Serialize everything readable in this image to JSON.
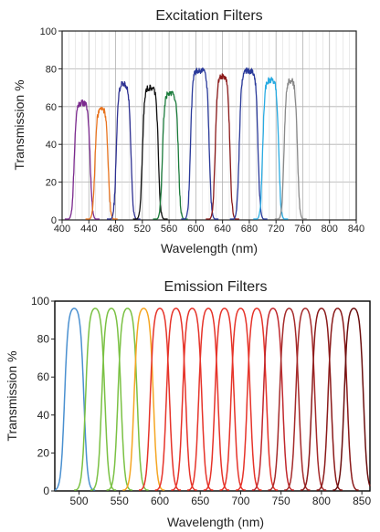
{
  "chart_data": [
    {
      "type": "line",
      "title": "Excitation Filters",
      "xlabel": "Wavelength (nm)",
      "ylabel": "Transmission %",
      "xlim": [
        400,
        840
      ],
      "ylim": [
        0,
        100
      ],
      "xticks": [
        400,
        440,
        480,
        520,
        560,
        600,
        640,
        680,
        720,
        760,
        800,
        840
      ],
      "yticks": [
        0,
        20,
        40,
        60,
        80,
        100
      ],
      "grid": true,
      "legend": "none",
      "series": [
        {
          "color": "#7b2a8e",
          "center": 430,
          "fwhm": 24,
          "peak": 62
        },
        {
          "color": "#e8731e",
          "center": 459,
          "fwhm": 20,
          "peak": 59
        },
        {
          "color": "#2e3192",
          "center": 492,
          "fwhm": 22,
          "peak": 72
        },
        {
          "color": "#111111",
          "center": 532,
          "fwhm": 24,
          "peak": 70
        },
        {
          "color": "#1a7a3a",
          "center": 562,
          "fwhm": 24,
          "peak": 67
        },
        {
          "color": "#2a3a9a",
          "center": 606,
          "fwhm": 28,
          "peak": 79
        },
        {
          "color": "#8b1a1a",
          "center": 640,
          "fwhm": 22,
          "peak": 76
        },
        {
          "color": "#2a3a9a",
          "center": 679,
          "fwhm": 28,
          "peak": 79
        },
        {
          "color": "#29abe2",
          "center": 712,
          "fwhm": 24,
          "peak": 74
        },
        {
          "color": "#8a8a8a",
          "center": 742,
          "fwhm": 20,
          "peak": 74
        }
      ]
    },
    {
      "type": "line",
      "title": "Emission Filters",
      "xlabel": "Wavelength (nm)",
      "ylabel": "Transmission %",
      "xlim": [
        470,
        860
      ],
      "ylim": [
        0,
        100
      ],
      "xticks": [
        500,
        550,
        600,
        650,
        700,
        750,
        800,
        850
      ],
      "yticks": [
        0,
        20,
        40,
        60,
        80,
        100
      ],
      "grid": false,
      "legend": "none",
      "series": [
        {
          "color": "#4a90d0",
          "center": 494,
          "fwhm": 24,
          "peak": 97
        },
        {
          "color": "#7ac143",
          "center": 520,
          "fwhm": 24,
          "peak": 97
        },
        {
          "color": "#7ac143",
          "center": 540,
          "fwhm": 24,
          "peak": 97
        },
        {
          "color": "#7ac143",
          "center": 560,
          "fwhm": 24,
          "peak": 97
        },
        {
          "color": "#f5a623",
          "center": 580,
          "fwhm": 24,
          "peak": 97
        },
        {
          "color": "#e63329",
          "center": 600,
          "fwhm": 24,
          "peak": 97
        },
        {
          "color": "#e63329",
          "center": 620,
          "fwhm": 24,
          "peak": 97
        },
        {
          "color": "#e63329",
          "center": 640,
          "fwhm": 24,
          "peak": 97
        },
        {
          "color": "#e63329",
          "center": 660,
          "fwhm": 24,
          "peak": 97
        },
        {
          "color": "#e63329",
          "center": 680,
          "fwhm": 24,
          "peak": 97
        },
        {
          "color": "#e63329",
          "center": 700,
          "fwhm": 24,
          "peak": 97
        },
        {
          "color": "#e63329",
          "center": 720,
          "fwhm": 24,
          "peak": 97
        },
        {
          "color": "#c0282d",
          "center": 740,
          "fwhm": 24,
          "peak": 97
        },
        {
          "color": "#a52a2a",
          "center": 760,
          "fwhm": 24,
          "peak": 97
        },
        {
          "color": "#a52a2a",
          "center": 780,
          "fwhm": 24,
          "peak": 97
        },
        {
          "color": "#8b1a1a",
          "center": 800,
          "fwhm": 24,
          "peak": 97
        },
        {
          "color": "#8b1a1a",
          "center": 820,
          "fwhm": 24,
          "peak": 97
        },
        {
          "color": "#6b0f0f",
          "center": 840,
          "fwhm": 24,
          "peak": 97
        }
      ]
    }
  ]
}
